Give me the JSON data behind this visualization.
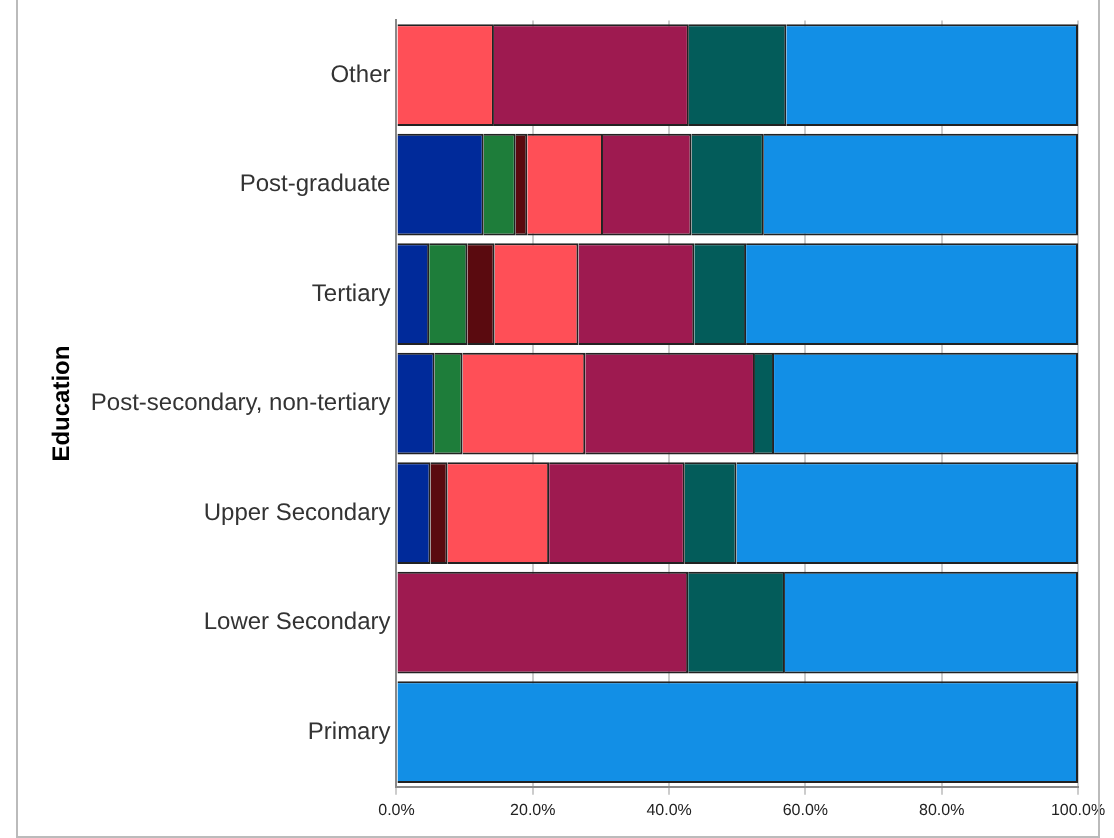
{
  "chart_data": {
    "type": "bar",
    "orientation": "horizontal",
    "stacked": true,
    "ylabel": "Education",
    "categories": [
      "Other",
      "Post-graduate",
      "Tertiary",
      "Post-secondary, non-tertiary",
      "Upper Secondary",
      "Lower Secondary",
      "Primary"
    ],
    "series": [
      {
        "color": "#002a9a",
        "values": [
          0,
          12.8,
          4.8,
          5.6,
          5.0,
          0,
          0
        ]
      },
      {
        "color": "#1e7d3a",
        "values": [
          0,
          4.7,
          5.6,
          4.1,
          0,
          0,
          0
        ]
      },
      {
        "color": "#5a0a0f",
        "values": [
          0,
          1.7,
          4.0,
          0,
          2.5,
          0,
          0
        ]
      },
      {
        "color": "#ff4f57",
        "values": [
          14.3,
          11.1,
          12.3,
          18.0,
          14.9,
          0,
          0
        ]
      },
      {
        "color": "#9e1a50",
        "values": [
          28.6,
          13.0,
          17.0,
          24.9,
          19.9,
          42.8,
          0
        ]
      },
      {
        "color": "#035c5a",
        "values": [
          14.3,
          10.6,
          7.6,
          2.8,
          7.6,
          14.2,
          0
        ]
      },
      {
        "color": "#128fe6",
        "values": [
          42.8,
          46.1,
          48.7,
          44.6,
          50.1,
          43.0,
          100
        ]
      }
    ],
    "xlim": [
      0,
      100
    ],
    "xticks": [
      {
        "value": 0,
        "label": "0.0%"
      },
      {
        "value": 20,
        "label": "20.0%"
      },
      {
        "value": 40,
        "label": "40.0%"
      },
      {
        "value": 60,
        "label": "60.0%"
      },
      {
        "value": 80,
        "label": "80.0%"
      },
      {
        "value": 100,
        "label": "100.0%"
      }
    ],
    "grid": "x",
    "legend": false
  }
}
